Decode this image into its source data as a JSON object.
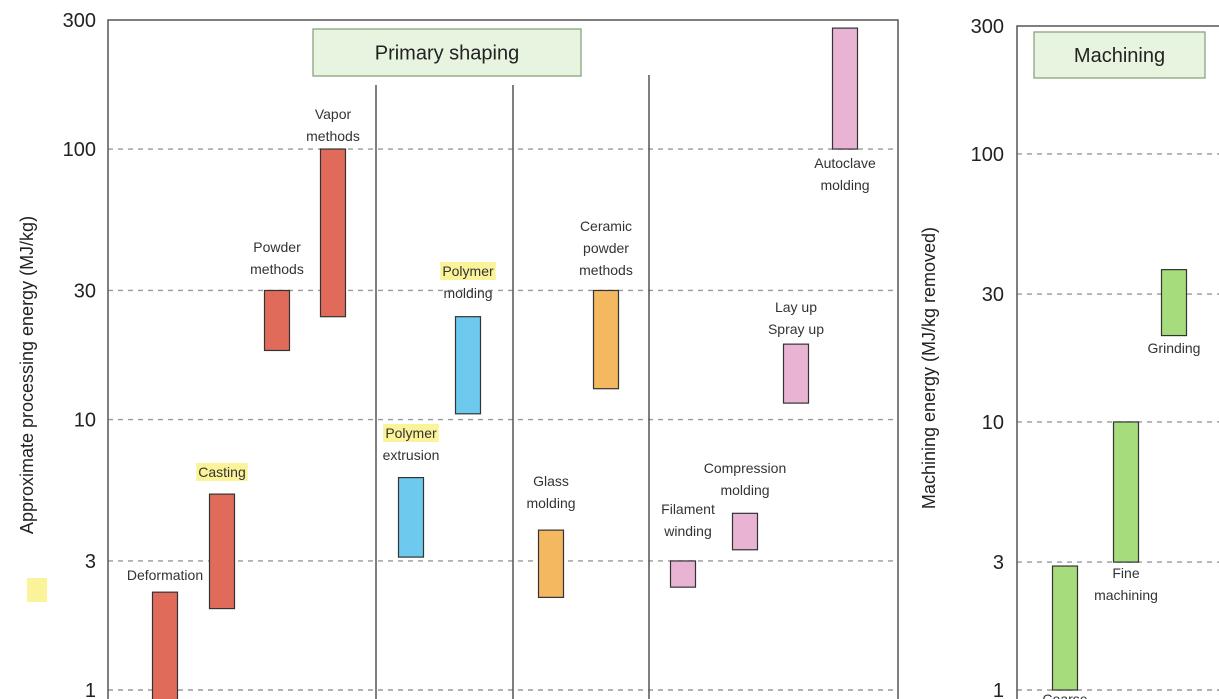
{
  "chart_data": [
    {
      "type": "bar",
      "subtype": "floating-range",
      "title": "Primary shaping",
      "ylabel": "Approximate processing energy (MJ/kg)",
      "yscale": "log",
      "ylim": [
        1,
        300
      ],
      "yticks": [
        "1",
        "3",
        "10",
        "30",
        "100",
        "300"
      ],
      "grid": true,
      "colors": {
        "metal": "#e06b5a",
        "polymer": "#6ec9ef",
        "ceramic": "#f4b860",
        "composite": "#e9b4d4",
        "highlight": "#fbf39a",
        "title_box": "#e6f4e0"
      },
      "bars": [
        {
          "label": "Deformation",
          "low": 0.9,
          "high": 2.3,
          "group": "metal",
          "highlight": false
        },
        {
          "label": "Casting",
          "low": 2.0,
          "high": 5.3,
          "group": "metal",
          "highlight": true
        },
        {
          "label": "Powder methods",
          "low": 18,
          "high": 30,
          "group": "metal",
          "highlight": false
        },
        {
          "label": "Vapor methods",
          "low": 24,
          "high": 100,
          "group": "metal",
          "highlight": false
        },
        {
          "label": "Polymer extrusion",
          "low": 3.1,
          "high": 6.1,
          "group": "polymer",
          "highlight": true,
          "highlight_word": "Polymer"
        },
        {
          "label": "Polymer molding",
          "low": 10.5,
          "high": 24,
          "group": "polymer",
          "highlight": true,
          "highlight_word": "Polymer"
        },
        {
          "label": "Glass molding",
          "low": 2.2,
          "high": 3.9,
          "group": "ceramic",
          "highlight": false
        },
        {
          "label": "Ceramic powder methods",
          "low": 13,
          "high": 30,
          "group": "ceramic",
          "highlight": false
        },
        {
          "label": "Filament winding",
          "low": 2.4,
          "high": 3.0,
          "group": "composite",
          "highlight": false
        },
        {
          "label": "Compression molding",
          "low": 3.3,
          "high": 4.5,
          "group": "composite",
          "highlight": false
        },
        {
          "label": "Lay up Spray up",
          "low": 11.5,
          "high": 19,
          "group": "composite",
          "highlight": false
        },
        {
          "label": "Autoclave molding",
          "low": 100,
          "high": 280,
          "group": "composite",
          "highlight": false
        }
      ]
    },
    {
      "type": "bar",
      "subtype": "floating-range",
      "title": "Machining",
      "ylabel": "Machining energy (MJ/kg removed)",
      "yscale": "log",
      "ylim": [
        1,
        300
      ],
      "yticks": [
        "1",
        "3",
        "10",
        "30",
        "100",
        "300"
      ],
      "grid": true,
      "colors": {
        "machining": "#a6dc7c",
        "title_box": "#e6f4e0"
      },
      "bars": [
        {
          "label": "Coarse",
          "low": 1.0,
          "high": 2.9,
          "group": "machining"
        },
        {
          "label": "Fine machining",
          "low": 3.0,
          "high": 10,
          "group": "machining"
        },
        {
          "label": "Grinding",
          "low": 21,
          "high": 37,
          "group": "machining"
        }
      ]
    }
  ]
}
